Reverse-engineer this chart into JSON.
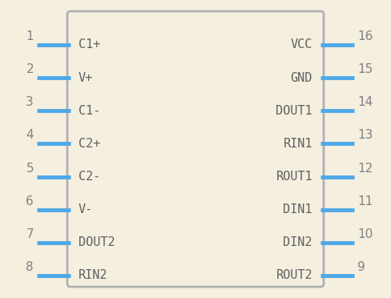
{
  "bg_color": "#f5efe0",
  "box_color": "#b0b0b0",
  "box_fill": "#f5efe0",
  "pin_color": "#4da8e8",
  "text_color": "#808080",
  "label_color": "#606060",
  "left_pins": [
    {
      "num": 1,
      "label": "C1+"
    },
    {
      "num": 2,
      "label": "V+"
    },
    {
      "num": 3,
      "label": "C1-"
    },
    {
      "num": 4,
      "label": "C2+"
    },
    {
      "num": 5,
      "label": "C2-"
    },
    {
      "num": 6,
      "label": "V-"
    },
    {
      "num": 7,
      "label": "DOUT2"
    },
    {
      "num": 8,
      "label": "RIN2"
    }
  ],
  "right_pins": [
    {
      "num": 16,
      "label": "VCC"
    },
    {
      "num": 15,
      "label": "GND"
    },
    {
      "num": 14,
      "label": "DOUT1"
    },
    {
      "num": 13,
      "label": "RIN1"
    },
    {
      "num": 12,
      "label": "ROUT1"
    },
    {
      "num": 11,
      "label": "DIN1"
    },
    {
      "num": 10,
      "label": "DIN2"
    },
    {
      "num": 9,
      "label": "ROUT2"
    }
  ],
  "font_size_label": 11,
  "font_size_num": 11
}
